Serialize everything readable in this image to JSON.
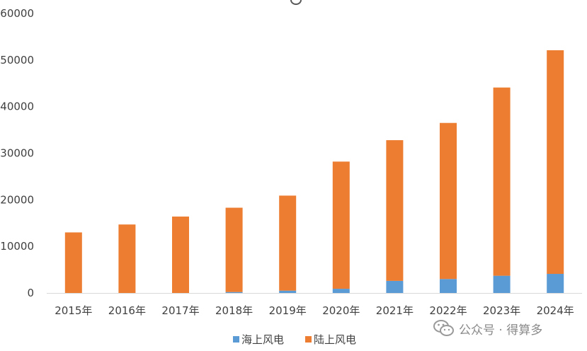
{
  "chart_data": {
    "type": "bar",
    "stacked": true,
    "categories": [
      "2015年",
      "2016年",
      "2017年",
      "2018年",
      "2019年",
      "2020年",
      "2021年",
      "2022年",
      "2023年",
      "2024年"
    ],
    "series": [
      {
        "name": "海上风电",
        "color": "#5B9BD5",
        "values": [
          0,
          0,
          0,
          200,
          500,
          900,
          2600,
          3000,
          3700,
          4100
        ]
      },
      {
        "name": "陆上风电",
        "color": "#ED7D31",
        "values": [
          13000,
          14700,
          16400,
          18100,
          20400,
          27300,
          30200,
          33500,
          40400,
          48000
        ]
      }
    ],
    "title": "",
    "xlabel": "",
    "ylabel": "",
    "ylim": [
      0,
      60000
    ],
    "yticks": [
      "0",
      "10000",
      "20000",
      "30000",
      "40000",
      "50000",
      "60000"
    ],
    "grid": false,
    "legend_position": "bottom"
  },
  "watermark": {
    "icon": "wechat-icon",
    "text": "公众号 · 得算多"
  }
}
